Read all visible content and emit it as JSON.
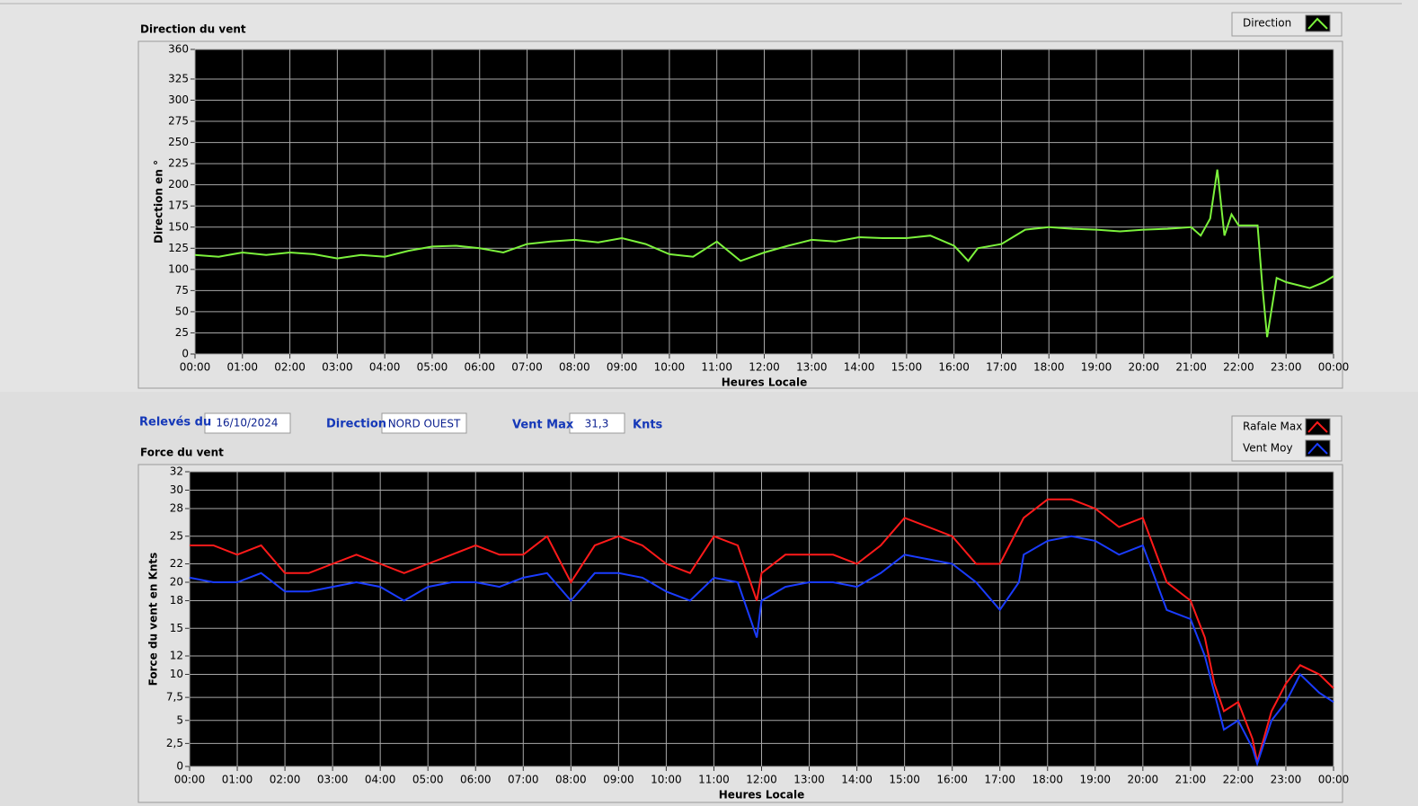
{
  "chart_data": [
    {
      "type": "line",
      "title": "Direction du vent",
      "y_label": "Direction en °",
      "x_label": "Heures Locale",
      "x": [
        0,
        0.5,
        1,
        1.5,
        2,
        2.5,
        3,
        3.5,
        4,
        4.5,
        5,
        5.5,
        6,
        6.5,
        7,
        7.5,
        8,
        8.5,
        9,
        9.5,
        10,
        10.5,
        11,
        11.5,
        12,
        12.5,
        13,
        13.5,
        14,
        14.5,
        15,
        15.5,
        16,
        16.3,
        16.5,
        17,
        17.5,
        18,
        18.5,
        19,
        19.5,
        20,
        20.5,
        21,
        21.2,
        21.4,
        21.55,
        21.7,
        21.85,
        22,
        22.4,
        22.5,
        22.6,
        22.8,
        23,
        23.5,
        23.8,
        24
      ],
      "series": [
        {
          "name": "Direction",
          "color": "#7cf23c",
          "values": [
            117,
            115,
            120,
            117,
            120,
            118,
            113,
            117,
            115,
            122,
            127,
            128,
            125,
            120,
            130,
            133,
            135,
            132,
            137,
            130,
            118,
            115,
            133,
            110,
            120,
            128,
            135,
            133,
            138,
            137,
            137,
            140,
            128,
            110,
            125,
            130,
            147,
            150,
            148,
            147,
            145,
            147,
            148,
            150,
            140,
            160,
            218,
            140,
            165,
            152,
            152,
            80,
            20,
            90,
            85,
            78,
            85,
            92
          ]
        }
      ],
      "xlim": [
        0,
        24
      ],
      "xticks": [
        {
          "value": 0,
          "label": "00:00"
        },
        {
          "value": 1,
          "label": "01:00"
        },
        {
          "value": 2,
          "label": "02:00"
        },
        {
          "value": 3,
          "label": "03:00"
        },
        {
          "value": 4,
          "label": "04:00"
        },
        {
          "value": 5,
          "label": "05:00"
        },
        {
          "value": 6,
          "label": "06:00"
        },
        {
          "value": 7,
          "label": "07:00"
        },
        {
          "value": 8,
          "label": "08:00"
        },
        {
          "value": 9,
          "label": "09:00"
        },
        {
          "value": 10,
          "label": "10:00"
        },
        {
          "value": 11,
          "label": "11:00"
        },
        {
          "value": 12,
          "label": "12:00"
        },
        {
          "value": 13,
          "label": "13:00"
        },
        {
          "value": 14,
          "label": "14:00"
        },
        {
          "value": 15,
          "label": "15:00"
        },
        {
          "value": 16,
          "label": "16:00"
        },
        {
          "value": 17,
          "label": "17:00"
        },
        {
          "value": 18,
          "label": "18:00"
        },
        {
          "value": 19,
          "label": "19:00"
        },
        {
          "value": 20,
          "label": "20:00"
        },
        {
          "value": 21,
          "label": "21:00"
        },
        {
          "value": 22,
          "label": "22:00"
        },
        {
          "value": 23,
          "label": "23:00"
        },
        {
          "value": 24,
          "label": "00:00"
        }
      ],
      "ylim": [
        0,
        360
      ],
      "yticks": [
        0,
        25,
        50,
        75,
        100,
        125,
        150,
        175,
        200,
        225,
        250,
        275,
        300,
        325,
        360
      ],
      "grid": true,
      "legend": "top-right"
    },
    {
      "type": "line",
      "title": "Force du vent",
      "y_label": "Force du vent en Knts",
      "x_label": "Heures Locale",
      "x": [
        0,
        0.5,
        1,
        1.5,
        2,
        2.5,
        3,
        3.5,
        4,
        4.5,
        5,
        5.5,
        6,
        6.5,
        7,
        7.5,
        8,
        8.5,
        9,
        9.5,
        10,
        10.5,
        11,
        11.5,
        11.9,
        12,
        12.5,
        13,
        13.5,
        14,
        14.5,
        15,
        15.5,
        16,
        16.5,
        17,
        17.4,
        17.5,
        18,
        18.5,
        19,
        19.5,
        20,
        20.5,
        21,
        21.3,
        21.5,
        21.7,
        22,
        22.3,
        22.4,
        22.7,
        23,
        23.3,
        23.7,
        24
      ],
      "series": [
        {
          "name": "Rafale Max",
          "color": "#ff1a1a",
          "values": [
            24,
            24,
            23,
            24,
            21,
            21,
            22,
            23,
            22,
            21,
            22,
            23,
            24,
            23,
            23,
            25,
            20,
            24,
            25,
            24,
            22,
            21,
            25,
            24,
            18,
            21,
            23,
            23,
            23,
            22,
            24,
            27,
            26,
            25,
            22,
            22,
            26,
            27,
            29,
            29,
            28,
            26,
            27,
            20,
            18,
            14,
            9,
            6,
            7,
            3,
            0.5,
            6,
            9,
            11,
            10,
            8.5
          ]
        },
        {
          "name": "Vent Moy",
          "color": "#1a3cff",
          "values": [
            20.5,
            20,
            20,
            21,
            19,
            19,
            19.5,
            20,
            19.5,
            18,
            19.5,
            20,
            20,
            19.5,
            20.5,
            21,
            18,
            21,
            21,
            20.5,
            19,
            18,
            20.5,
            20,
            14,
            18,
            19.5,
            20,
            20,
            19.5,
            21,
            23,
            22.5,
            22,
            20,
            17,
            20,
            23,
            24.5,
            25,
            24.5,
            23,
            24,
            17,
            16,
            12,
            8,
            4,
            5,
            2,
            0.3,
            5,
            7,
            10,
            8,
            7
          ]
        }
      ],
      "xlim": [
        0,
        24
      ],
      "xticks": [
        {
          "value": 0,
          "label": "00:00"
        },
        {
          "value": 1,
          "label": "01:00"
        },
        {
          "value": 2,
          "label": "02:00"
        },
        {
          "value": 3,
          "label": "03:00"
        },
        {
          "value": 4,
          "label": "04:00"
        },
        {
          "value": 5,
          "label": "05:00"
        },
        {
          "value": 6,
          "label": "06:00"
        },
        {
          "value": 7,
          "label": "07:00"
        },
        {
          "value": 8,
          "label": "08:00"
        },
        {
          "value": 9,
          "label": "09:00"
        },
        {
          "value": 10,
          "label": "10:00"
        },
        {
          "value": 11,
          "label": "11:00"
        },
        {
          "value": 12,
          "label": "12:00"
        },
        {
          "value": 13,
          "label": "13:00"
        },
        {
          "value": 14,
          "label": "14:00"
        },
        {
          "value": 15,
          "label": "15:00"
        },
        {
          "value": 16,
          "label": "16:00"
        },
        {
          "value": 17,
          "label": "17:00"
        },
        {
          "value": 18,
          "label": "18:00"
        },
        {
          "value": 19,
          "label": "19:00"
        },
        {
          "value": 20,
          "label": "20:00"
        },
        {
          "value": 21,
          "label": "21:00"
        },
        {
          "value": 22,
          "label": "22:00"
        },
        {
          "value": 23,
          "label": "23:00"
        },
        {
          "value": 24,
          "label": "00:00"
        }
      ],
      "ylim": [
        0,
        32
      ],
      "yticks": [
        0,
        {
          "value": 2.5,
          "label": "2,5"
        },
        5,
        {
          "value": 7.5,
          "label": "7,5"
        },
        10,
        12,
        15,
        18,
        20,
        22,
        25,
        28,
        30,
        32
      ],
      "grid": true,
      "legend": "top-right"
    }
  ],
  "controls": {
    "date_label": "Relevés du",
    "date": "16/10/2024",
    "direction_label": "Direction",
    "direction": "NORD OUEST",
    "max_label": "Vent Max",
    "max": "31,3",
    "unit": "Knts"
  }
}
